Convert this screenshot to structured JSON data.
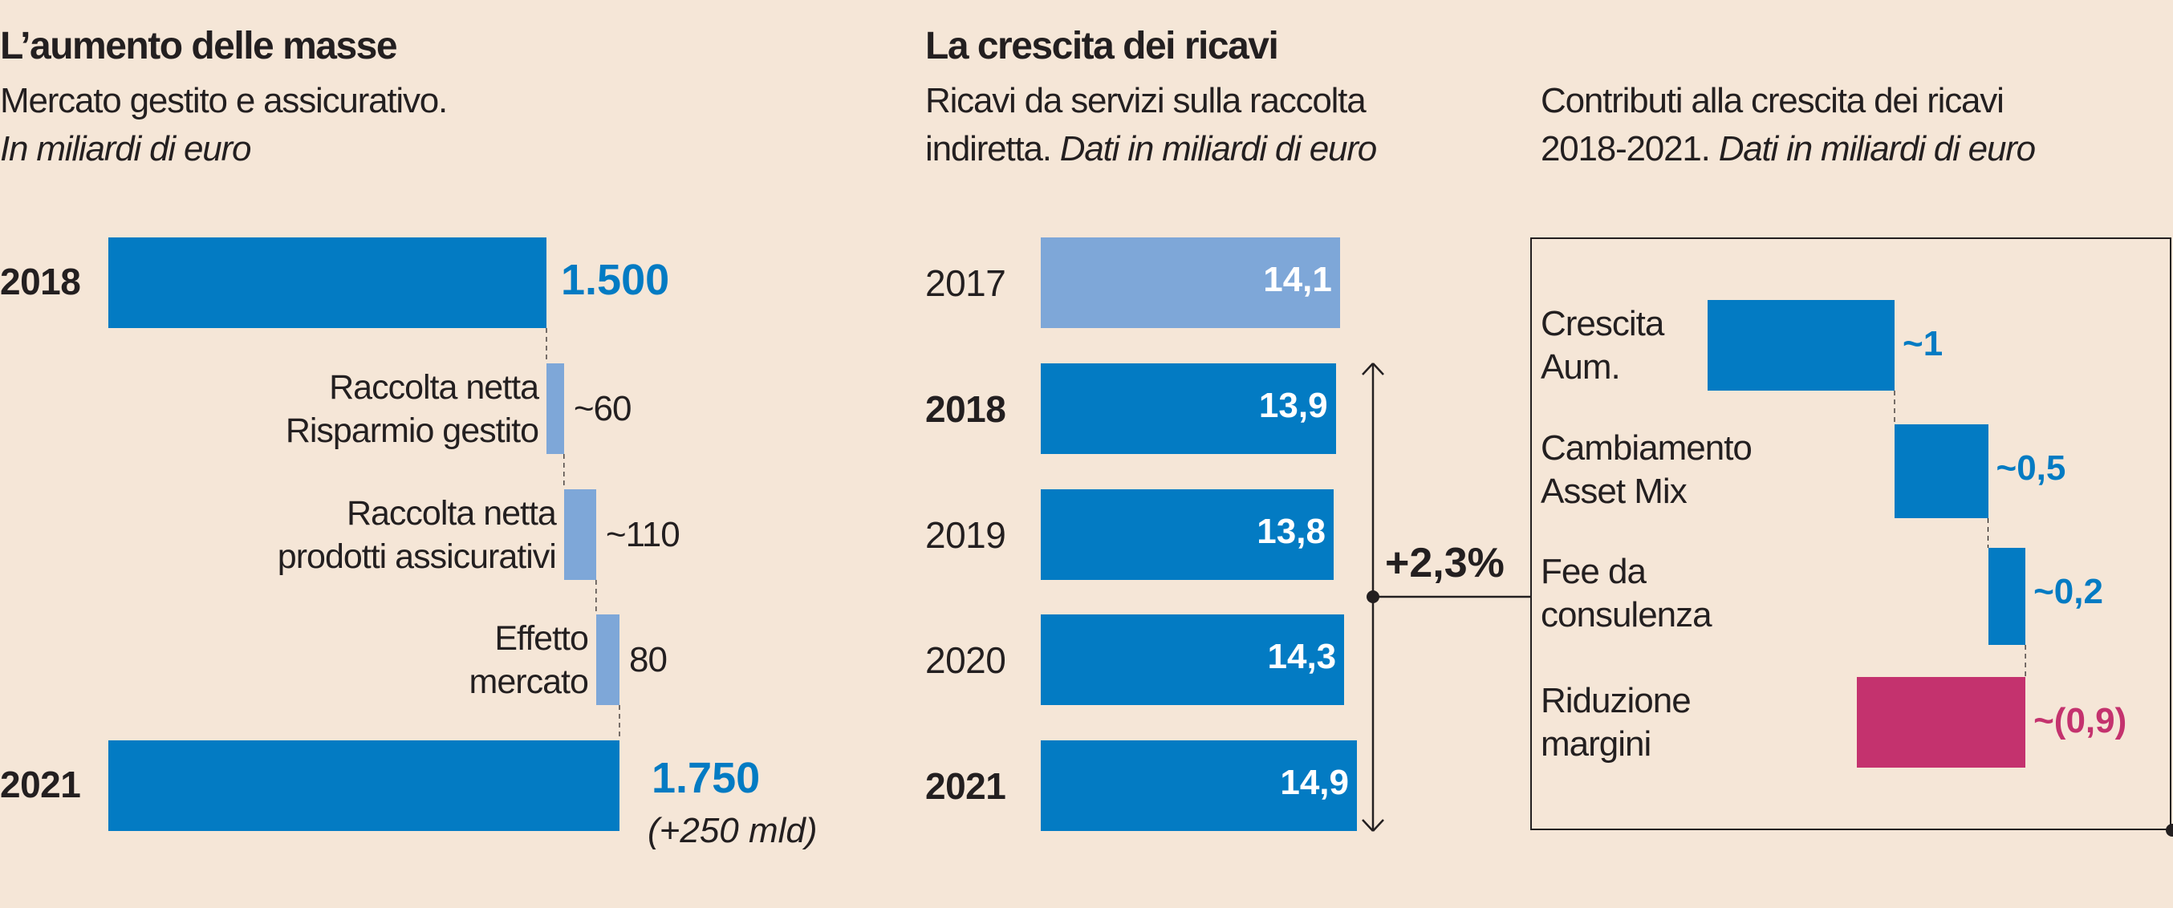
{
  "colors": {
    "background": "#F5E6D7",
    "bar_blue": "#037BC3",
    "bar_light_blue": "#7EA7D8",
    "negative_magenta": "#C4326E",
    "text": "#231F20",
    "value_white": "#FFFFFF"
  },
  "chart_data": [
    {
      "type": "bar",
      "subtype": "waterfall-horizontal",
      "title": "L’aumento delle masse",
      "subtitle": "Mercato gestito e assicurativo.",
      "unit_note": "In miliardi di euro",
      "categories": [
        "2018",
        "Raccolta netta Risparmio gestito",
        "Raccolta netta prodotti assicurativi",
        "Effetto mercato",
        "2021"
      ],
      "bars": [
        {
          "label_lines": [
            "2018"
          ],
          "kind": "total",
          "value": 1500,
          "value_label": "1.500",
          "start": 0
        },
        {
          "label_lines": [
            "Raccolta netta",
            "Risparmio gestito"
          ],
          "kind": "delta",
          "value": 60,
          "value_label": "~60",
          "start": 1500
        },
        {
          "label_lines": [
            "Raccolta netta",
            "prodotti assicurativi"
          ],
          "kind": "delta",
          "value": 110,
          "value_label": "~110",
          "start": 1560
        },
        {
          "label_lines": [
            "Effetto",
            "mercato"
          ],
          "kind": "delta",
          "value": 80,
          "value_label": "80",
          "start": 1670
        },
        {
          "label_lines": [
            "2021"
          ],
          "kind": "total",
          "value": 1750,
          "value_label": "1.750",
          "start": 0,
          "note": "(+250 mld)"
        }
      ],
      "xlim": [
        0,
        1750
      ]
    },
    {
      "type": "bar",
      "subtype": "horizontal",
      "title": "La crescita dei ricavi",
      "subtitle": "Ricavi da servizi sulla raccolta",
      "subtitle2": "indiretta.",
      "unit_note": "Dati in miliardi di euro",
      "categories": [
        "2017",
        "2018",
        "2019",
        "2020",
        "2021"
      ],
      "values": [
        14.1,
        13.9,
        13.8,
        14.3,
        14.9
      ],
      "value_labels": [
        "14,1",
        "13,9",
        "13,8",
        "14,3",
        "14,9"
      ],
      "bold_years": [
        false,
        true,
        false,
        false,
        true
      ],
      "highlight": [
        true,
        false,
        false,
        false,
        false
      ],
      "annotation": {
        "text": "+2,3%",
        "span": [
          "2018",
          "2021"
        ],
        "meaning": "growth 2018-2021"
      }
    },
    {
      "type": "bar",
      "subtype": "waterfall-horizontal",
      "title": "Contributi alla crescita dei ricavi",
      "subtitle": "2018-2021.",
      "unit_note": "Dati in miliardi di euro",
      "categories": [
        "Crescita Aum.",
        "Cambiamento Asset Mix",
        "Fee da consulenza",
        "Riduzione margini"
      ],
      "bars": [
        {
          "label_lines": [
            "Crescita",
            "Aum."
          ],
          "value": 1.0,
          "value_label": "~1",
          "start": 0
        },
        {
          "label_lines": [
            "Cambiamento",
            "Asset Mix"
          ],
          "value": 0.5,
          "value_label": "~0,5",
          "start": 1.0
        },
        {
          "label_lines": [
            "Fee da",
            "consulenza"
          ],
          "value": 0.2,
          "value_label": "~0,2",
          "start": 1.5
        },
        {
          "label_lines": [
            "Riduzione",
            "margini"
          ],
          "value": -0.9,
          "value_label": "~(0,9)",
          "start": 1.7
        }
      ]
    }
  ]
}
